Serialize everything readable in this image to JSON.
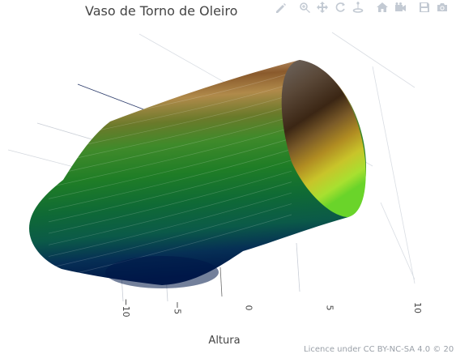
{
  "title": "Vaso de Torno de Oleiro",
  "toolbar": [
    {
      "name": "edit-icon",
      "group": 0
    },
    {
      "name": "zoom-icon",
      "group": 1
    },
    {
      "name": "pan-icon",
      "group": 1
    },
    {
      "name": "orbit-rotation-icon",
      "group": 1
    },
    {
      "name": "turntable-rotation-icon",
      "group": 1
    },
    {
      "name": "reset-camera-home-icon",
      "group": 2
    },
    {
      "name": "last-saved-camera-icon",
      "group": 2
    },
    {
      "name": "save-to-cloud-icon",
      "group": 3
    },
    {
      "name": "download-png-icon",
      "group": 3
    }
  ],
  "license": "Licence under CC BY-NC-SA 4.0 © 20",
  "chart_data": {
    "type": "surface",
    "title": "Vaso de Torno de Oleiro",
    "xlabel": "Altura",
    "x_ticks": [
      -10,
      -5,
      0,
      5,
      10
    ],
    "x_tick_labels": [
      "−10",
      "−5",
      "0",
      "5",
      "10"
    ],
    "profile": {
      "description": "vase of revolution, radius vs height",
      "height": [
        -12.5,
        -11,
        -9.5,
        -8,
        -6.5,
        -5,
        0,
        5,
        8
      ],
      "radius": [
        0.8,
        3.2,
        3.8,
        4.2,
        4.8,
        6.0,
        6.5,
        7.0,
        7.3
      ]
    },
    "colorscale": [
      "#001848",
      "#0b6a3a",
      "#1f8a24",
      "#8a5a2c",
      "#3b2614",
      "#ffffff"
    ],
    "grid": true
  }
}
